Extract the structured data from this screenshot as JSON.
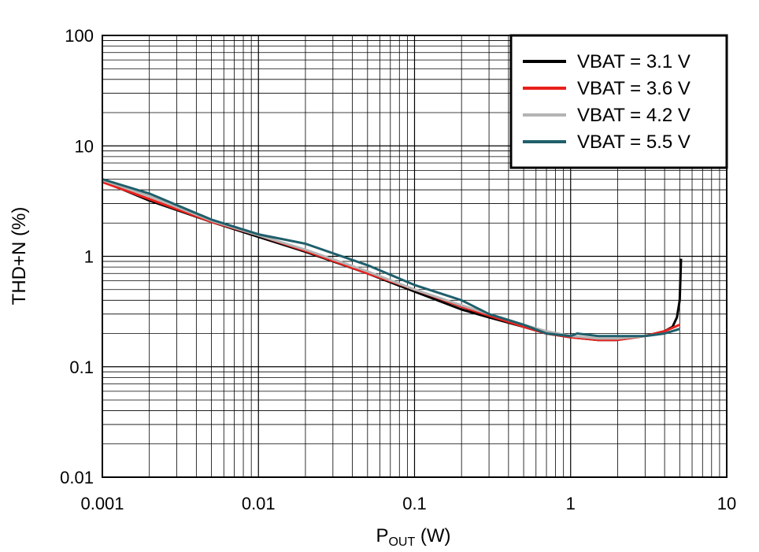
{
  "chart_data": {
    "type": "line",
    "title": "",
    "xlabel": {
      "main": "P",
      "sub": "OUT",
      "unit": " (W)"
    },
    "ylabel": "THD+N (%)",
    "xscale": "log",
    "yscale": "log",
    "xlim": [
      0.001,
      10
    ],
    "ylim": [
      0.01,
      100
    ],
    "grid": true,
    "legend_position": "top-right",
    "x_ticks": [
      "0.001",
      "0.01",
      "0.1",
      "1",
      "10"
    ],
    "y_ticks": [
      "0.01",
      "0.1",
      "1",
      "10",
      "100"
    ],
    "series": [
      {
        "name": "VBAT = 3.1 V",
        "color": "#000000",
        "x": [
          0.001,
          0.002,
          0.005,
          0.01,
          0.02,
          0.05,
          0.1,
          0.2,
          0.3,
          0.5,
          0.7,
          1.0,
          1.5,
          2.0,
          3.0,
          4.0,
          4.5,
          4.8,
          5.0,
          5.1
        ],
        "y": [
          4.8,
          3.2,
          2.05,
          1.5,
          1.1,
          0.7,
          0.48,
          0.33,
          0.28,
          0.23,
          0.2,
          0.185,
          0.175,
          0.175,
          0.19,
          0.21,
          0.23,
          0.28,
          0.4,
          0.95
        ]
      },
      {
        "name": "VBAT = 3.6 V",
        "color": "#e8201c",
        "x": [
          0.001,
          0.002,
          0.005,
          0.01,
          0.02,
          0.05,
          0.1,
          0.2,
          0.3,
          0.5,
          0.7,
          1.0,
          1.5,
          2.0,
          3.0,
          4.0,
          5.0
        ],
        "y": [
          4.7,
          3.3,
          2.05,
          1.55,
          1.12,
          0.7,
          0.5,
          0.35,
          0.29,
          0.23,
          0.2,
          0.185,
          0.175,
          0.175,
          0.19,
          0.21,
          0.24
        ]
      },
      {
        "name": "VBAT = 4.2 V",
        "color": "#b4b4b4",
        "x": [
          0.001,
          0.002,
          0.005,
          0.01,
          0.02,
          0.05,
          0.1,
          0.2,
          0.3,
          0.5,
          0.7,
          1.0,
          1.5,
          2.0,
          3.0,
          4.0,
          5.0
        ],
        "y": [
          4.9,
          3.5,
          2.1,
          1.55,
          1.15,
          0.73,
          0.5,
          0.36,
          0.3,
          0.24,
          0.21,
          0.19,
          0.18,
          0.18,
          0.19,
          0.2,
          0.22
        ]
      },
      {
        "name": "VBAT = 5.5 V",
        "color": "#1f5f6b",
        "x": [
          0.001,
          0.002,
          0.005,
          0.01,
          0.02,
          0.05,
          0.1,
          0.2,
          0.3,
          0.5,
          0.7,
          1.0,
          1.1,
          1.5,
          2.0,
          3.0,
          4.0,
          5.0
        ],
        "y": [
          5.0,
          3.7,
          2.15,
          1.58,
          1.3,
          0.83,
          0.55,
          0.4,
          0.3,
          0.24,
          0.2,
          0.19,
          0.2,
          0.19,
          0.19,
          0.19,
          0.2,
          0.22
        ]
      }
    ]
  }
}
